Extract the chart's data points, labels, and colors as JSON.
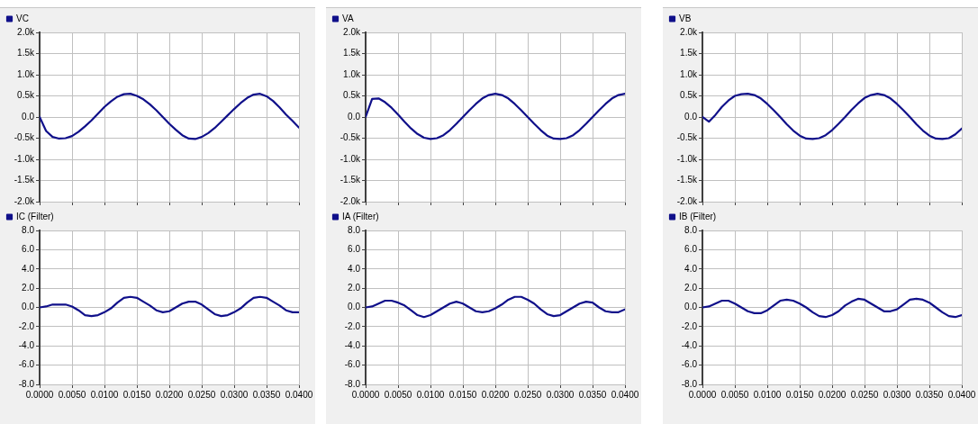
{
  "chart_data": [
    {
      "type": "line",
      "x": [
        0,
        0.001,
        0.002,
        0.003,
        0.004,
        0.005,
        0.006,
        0.007,
        0.008,
        0.009,
        0.01,
        0.011,
        0.012,
        0.013,
        0.014,
        0.015,
        0.016,
        0.017,
        0.018,
        0.019,
        0.02,
        0.021,
        0.022,
        0.023,
        0.024,
        0.025,
        0.026,
        0.027,
        0.028,
        0.029,
        0.03,
        0.031,
        0.032,
        0.033,
        0.034,
        0.035,
        0.036,
        0.037,
        0.038,
        0.039,
        0.04
      ],
      "series": [
        {
          "name": "VC",
          "color": "#10108a",
          "values": [
            0,
            -330,
            -470,
            -510,
            -500,
            -450,
            -350,
            -220,
            -80,
            80,
            240,
            370,
            480,
            540,
            550,
            500,
            420,
            300,
            160,
            0,
            -160,
            -300,
            -430,
            -510,
            -520,
            -470,
            -380,
            -260,
            -110,
            40,
            190,
            330,
            450,
            530,
            550,
            490,
            380,
            230,
            60,
            -90,
            -250
          ]
        }
      ],
      "xlim": [
        0,
        0.04
      ],
      "xticks": [
        {
          "value": 0,
          "label": null
        },
        {
          "value": 0.005,
          "label": null
        },
        {
          "value": 0.01,
          "label": null
        },
        {
          "value": 0.015,
          "label": null
        },
        {
          "value": 0.02,
          "label": null
        },
        {
          "value": 0.025,
          "label": null
        },
        {
          "value": 0.03,
          "label": null
        },
        {
          "value": 0.035,
          "label": null
        },
        {
          "value": 0.04,
          "label": null
        }
      ],
      "ylim": [
        -2000,
        2000
      ],
      "yticks": [
        {
          "value": 2000,
          "label": "2.0k"
        },
        {
          "value": 1500,
          "label": "1.5k"
        },
        {
          "value": 1000,
          "label": "1.0k"
        },
        {
          "value": 500,
          "label": "0.5k"
        },
        {
          "value": 0,
          "label": "0.0"
        },
        {
          "value": -500,
          "label": "-0.5k"
        },
        {
          "value": -1000,
          "label": "-1.0k"
        },
        {
          "value": -1500,
          "label": "-1.5k"
        },
        {
          "value": -2000,
          "label": "-2.0k"
        }
      ],
      "grid": true,
      "legend": "top left",
      "tick_labels": "y"
    },
    {
      "type": "line",
      "x": [
        0,
        0.001,
        0.002,
        0.003,
        0.004,
        0.005,
        0.006,
        0.007,
        0.008,
        0.009,
        0.01,
        0.011,
        0.012,
        0.013,
        0.014,
        0.015,
        0.016,
        0.017,
        0.018,
        0.019,
        0.02,
        0.021,
        0.022,
        0.023,
        0.024,
        0.025,
        0.026,
        0.027,
        0.028,
        0.029,
        0.03,
        0.031,
        0.032,
        0.033,
        0.034,
        0.035,
        0.036,
        0.037,
        0.038,
        0.039,
        0.04
      ],
      "series": [
        {
          "name": "VA",
          "color": "#10108a",
          "values": [
            0,
            430,
            440,
            350,
            220,
            60,
            -110,
            -270,
            -400,
            -490,
            -520,
            -500,
            -430,
            -310,
            -160,
            0,
            160,
            310,
            440,
            520,
            550,
            520,
            440,
            310,
            160,
            0,
            -160,
            -310,
            -440,
            -510,
            -520,
            -500,
            -430,
            -310,
            -160,
            0,
            160,
            310,
            440,
            520,
            550
          ]
        }
      ],
      "xlim": [
        0,
        0.04
      ],
      "xticks": [
        {
          "value": 0,
          "label": null
        },
        {
          "value": 0.005,
          "label": null
        },
        {
          "value": 0.01,
          "label": null
        },
        {
          "value": 0.015,
          "label": null
        },
        {
          "value": 0.02,
          "label": null
        },
        {
          "value": 0.025,
          "label": null
        },
        {
          "value": 0.03,
          "label": null
        },
        {
          "value": 0.035,
          "label": null
        },
        {
          "value": 0.04,
          "label": null
        }
      ],
      "ylim": [
        -2000,
        2000
      ],
      "yticks": [
        {
          "value": 2000,
          "label": "2.0k"
        },
        {
          "value": 1500,
          "label": "1.5k"
        },
        {
          "value": 1000,
          "label": "1.0k"
        },
        {
          "value": 500,
          "label": "0.5k"
        },
        {
          "value": 0,
          "label": "0.0"
        },
        {
          "value": -500,
          "label": "-0.5k"
        },
        {
          "value": -1000,
          "label": "-1.0k"
        },
        {
          "value": -1500,
          "label": "-1.5k"
        },
        {
          "value": -2000,
          "label": "-2.0k"
        }
      ],
      "grid": true,
      "legend": "top left",
      "tick_labels": "y"
    },
    {
      "type": "line",
      "x": [
        0,
        0.001,
        0.002,
        0.003,
        0.004,
        0.005,
        0.006,
        0.007,
        0.008,
        0.009,
        0.01,
        0.011,
        0.012,
        0.013,
        0.014,
        0.015,
        0.016,
        0.017,
        0.018,
        0.019,
        0.02,
        0.021,
        0.022,
        0.023,
        0.024,
        0.025,
        0.026,
        0.027,
        0.028,
        0.029,
        0.03,
        0.031,
        0.032,
        0.033,
        0.034,
        0.035,
        0.036,
        0.037,
        0.038,
        0.039,
        0.04
      ],
      "series": [
        {
          "name": "VB",
          "color": "#10108a",
          "values": [
            0,
            -110,
            50,
            240,
            390,
            500,
            540,
            550,
            520,
            440,
            310,
            160,
            0,
            -170,
            -320,
            -440,
            -510,
            -520,
            -500,
            -430,
            -310,
            -160,
            0,
            170,
            320,
            450,
            520,
            550,
            520,
            440,
            310,
            160,
            0,
            -170,
            -320,
            -440,
            -510,
            -520,
            -500,
            -410,
            -270
          ]
        }
      ],
      "xlim": [
        0,
        0.04
      ],
      "xticks": [
        {
          "value": 0,
          "label": null
        },
        {
          "value": 0.005,
          "label": null
        },
        {
          "value": 0.01,
          "label": null
        },
        {
          "value": 0.015,
          "label": null
        },
        {
          "value": 0.02,
          "label": null
        },
        {
          "value": 0.025,
          "label": null
        },
        {
          "value": 0.03,
          "label": null
        },
        {
          "value": 0.035,
          "label": null
        },
        {
          "value": 0.04,
          "label": null
        }
      ],
      "ylim": [
        -2000,
        2000
      ],
      "yticks": [
        {
          "value": 2000,
          "label": "2.0k"
        },
        {
          "value": 1500,
          "label": "1.5k"
        },
        {
          "value": 1000,
          "label": "1.0k"
        },
        {
          "value": 500,
          "label": "0.5k"
        },
        {
          "value": 0,
          "label": "0.0"
        },
        {
          "value": -500,
          "label": "-0.5k"
        },
        {
          "value": -1000,
          "label": "-1.0k"
        },
        {
          "value": -1500,
          "label": "-1.5k"
        },
        {
          "value": -2000,
          "label": "-2.0k"
        }
      ],
      "grid": true,
      "legend": "top left",
      "tick_labels": "y"
    },
    {
      "type": "line",
      "x": [
        0,
        0.001,
        0.002,
        0.003,
        0.004,
        0.005,
        0.006,
        0.007,
        0.008,
        0.009,
        0.01,
        0.011,
        0.012,
        0.013,
        0.014,
        0.015,
        0.016,
        0.017,
        0.018,
        0.019,
        0.02,
        0.021,
        0.022,
        0.023,
        0.024,
        0.025,
        0.026,
        0.027,
        0.028,
        0.029,
        0.03,
        0.031,
        0.032,
        0.033,
        0.034,
        0.035,
        0.036,
        0.037,
        0.038,
        0.039,
        0.04
      ],
      "series": [
        {
          "name": "IC (Filter)",
          "color": "#10108a",
          "values": [
            0,
            0.1,
            0.3,
            0.3,
            0.3,
            0.1,
            -0.3,
            -0.8,
            -0.9,
            -0.8,
            -0.5,
            -0.1,
            0.5,
            1.0,
            1.1,
            1.0,
            0.6,
            0.2,
            -0.3,
            -0.5,
            -0.4,
            0.0,
            0.4,
            0.6,
            0.6,
            0.3,
            -0.2,
            -0.7,
            -0.9,
            -0.8,
            -0.5,
            -0.1,
            0.5,
            1.0,
            1.1,
            1.0,
            0.6,
            0.2,
            -0.3,
            -0.5,
            -0.5
          ]
        }
      ],
      "xlim": [
        0,
        0.04
      ],
      "xticks": [
        {
          "value": 0,
          "label": "0.0000"
        },
        {
          "value": 0.005,
          "label": "0.0050"
        },
        {
          "value": 0.01,
          "label": "0.0100"
        },
        {
          "value": 0.015,
          "label": "0.0150"
        },
        {
          "value": 0.02,
          "label": "0.0200"
        },
        {
          "value": 0.025,
          "label": "0.0250"
        },
        {
          "value": 0.03,
          "label": "0.0300"
        },
        {
          "value": 0.035,
          "label": "0.0350"
        },
        {
          "value": 0.04,
          "label": "0.0400"
        }
      ],
      "ylim": [
        -8,
        8
      ],
      "yticks": [
        {
          "value": 8,
          "label": "8.0"
        },
        {
          "value": 6,
          "label": "6.0"
        },
        {
          "value": 4,
          "label": "4.0"
        },
        {
          "value": 2,
          "label": "2.0"
        },
        {
          "value": 0,
          "label": "0.0"
        },
        {
          "value": -2,
          "label": "-2.0"
        },
        {
          "value": -4,
          "label": "-4.0"
        },
        {
          "value": -6,
          "label": "-6.0"
        },
        {
          "value": -8,
          "label": "-8.0"
        }
      ],
      "grid": true,
      "legend": "top left"
    },
    {
      "type": "line",
      "x": [
        0,
        0.001,
        0.002,
        0.003,
        0.004,
        0.005,
        0.006,
        0.007,
        0.008,
        0.009,
        0.01,
        0.011,
        0.012,
        0.013,
        0.014,
        0.015,
        0.016,
        0.017,
        0.018,
        0.019,
        0.02,
        0.021,
        0.022,
        0.023,
        0.024,
        0.025,
        0.026,
        0.027,
        0.028,
        0.029,
        0.03,
        0.031,
        0.032,
        0.033,
        0.034,
        0.035,
        0.036,
        0.037,
        0.038,
        0.039,
        0.04
      ],
      "series": [
        {
          "name": "IA (Filter)",
          "color": "#10108a",
          "values": [
            0,
            0.1,
            0.4,
            0.7,
            0.7,
            0.5,
            0.2,
            -0.3,
            -0.8,
            -1.0,
            -0.8,
            -0.4,
            0.0,
            0.4,
            0.6,
            0.4,
            0.0,
            -0.4,
            -0.5,
            -0.4,
            -0.1,
            0.3,
            0.8,
            1.1,
            1.1,
            0.8,
            0.4,
            -0.2,
            -0.7,
            -0.9,
            -0.8,
            -0.4,
            0.0,
            0.4,
            0.6,
            0.5,
            0.0,
            -0.4,
            -0.5,
            -0.5,
            -0.2
          ]
        }
      ],
      "xlim": [
        0,
        0.04
      ],
      "xticks": [
        {
          "value": 0,
          "label": "0.0000"
        },
        {
          "value": 0.005,
          "label": "0.0050"
        },
        {
          "value": 0.01,
          "label": "0.0100"
        },
        {
          "value": 0.015,
          "label": "0.0150"
        },
        {
          "value": 0.02,
          "label": "0.0200"
        },
        {
          "value": 0.025,
          "label": "0.0250"
        },
        {
          "value": 0.03,
          "label": "0.0300"
        },
        {
          "value": 0.035,
          "label": "0.0350"
        },
        {
          "value": 0.04,
          "label": "0.0400"
        }
      ],
      "ylim": [
        -8,
        8
      ],
      "yticks": [
        {
          "value": 8,
          "label": "8.0"
        },
        {
          "value": 6,
          "label": "6.0"
        },
        {
          "value": 4,
          "label": "4.0"
        },
        {
          "value": 2,
          "label": "2.0"
        },
        {
          "value": 0,
          "label": "0.0"
        },
        {
          "value": -2,
          "label": "-2.0"
        },
        {
          "value": -4,
          "label": "-4.0"
        },
        {
          "value": -6,
          "label": "-6.0"
        },
        {
          "value": -8,
          "label": "-8.0"
        }
      ],
      "grid": true,
      "legend": "top left"
    },
    {
      "type": "line",
      "x": [
        0,
        0.001,
        0.002,
        0.003,
        0.004,
        0.005,
        0.006,
        0.007,
        0.008,
        0.009,
        0.01,
        0.011,
        0.012,
        0.013,
        0.014,
        0.015,
        0.016,
        0.017,
        0.018,
        0.019,
        0.02,
        0.021,
        0.022,
        0.023,
        0.024,
        0.025,
        0.026,
        0.027,
        0.028,
        0.029,
        0.03,
        0.031,
        0.032,
        0.033,
        0.034,
        0.035,
        0.036,
        0.037,
        0.038,
        0.039,
        0.04
      ],
      "series": [
        {
          "name": "IB (Filter)",
          "color": "#10108a",
          "values": [
            0,
            0.1,
            0.4,
            0.7,
            0.7,
            0.4,
            0.0,
            -0.4,
            -0.6,
            -0.6,
            -0.3,
            0.2,
            0.7,
            0.8,
            0.7,
            0.4,
            0.0,
            -0.5,
            -0.9,
            -1.0,
            -0.8,
            -0.4,
            0.2,
            0.6,
            0.9,
            0.8,
            0.4,
            0.0,
            -0.4,
            -0.4,
            -0.2,
            0.3,
            0.8,
            0.9,
            0.8,
            0.5,
            0.0,
            -0.5,
            -0.9,
            -1.0,
            -0.8
          ]
        }
      ],
      "xlim": [
        0,
        0.04
      ],
      "xticks": [
        {
          "value": 0,
          "label": "0.0000"
        },
        {
          "value": 0.005,
          "label": "0.0050"
        },
        {
          "value": 0.01,
          "label": "0.0100"
        },
        {
          "value": 0.015,
          "label": "0.0150"
        },
        {
          "value": 0.02,
          "label": "0.0200"
        },
        {
          "value": 0.025,
          "label": "0.0250"
        },
        {
          "value": 0.03,
          "label": "0.0300"
        },
        {
          "value": 0.035,
          "label": "0.0350"
        },
        {
          "value": 0.04,
          "label": "0.0400"
        }
      ],
      "ylim": [
        -8,
        8
      ],
      "yticks": [
        {
          "value": 8,
          "label": "8.0"
        },
        {
          "value": 6,
          "label": "6.0"
        },
        {
          "value": 4,
          "label": "4.0"
        },
        {
          "value": 2,
          "label": "2.0"
        },
        {
          "value": 0,
          "label": "0.0"
        },
        {
          "value": -2,
          "label": "-2.0"
        },
        {
          "value": -4,
          "label": "-4.0"
        },
        {
          "value": -6,
          "label": "-6.0"
        },
        {
          "value": -8,
          "label": "-8.0"
        }
      ],
      "grid": true,
      "legend": "top left"
    }
  ]
}
